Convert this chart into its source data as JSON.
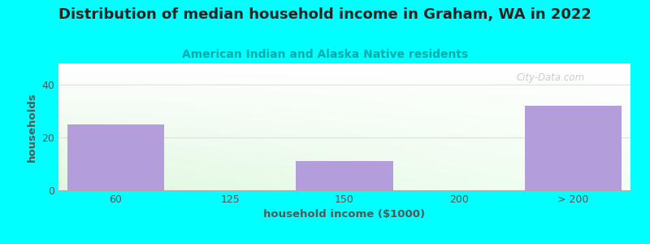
{
  "title": "Distribution of median household income in Graham, WA in 2022",
  "subtitle": "American Indian and Alaska Native residents",
  "xlabel": "household income ($1000)",
  "ylabel": "households",
  "categories": [
    "60",
    "125",
    "150",
    "200",
    "> 200"
  ],
  "values": [
    25,
    0,
    11,
    0,
    32
  ],
  "bar_color": "#b39ddb",
  "background_color": "#00ffff",
  "title_fontsize": 13,
  "subtitle_fontsize": 10,
  "label_fontsize": 9.5,
  "tick_fontsize": 9,
  "ylim": [
    0,
    48
  ],
  "yticks": [
    0,
    20,
    40
  ],
  "watermark": "City-Data.com",
  "title_color": "#222222",
  "subtitle_color": "#00aaaa",
  "axis_label_color": "#555555",
  "tick_color": "#555555",
  "grid_color": "#e0e0e0"
}
